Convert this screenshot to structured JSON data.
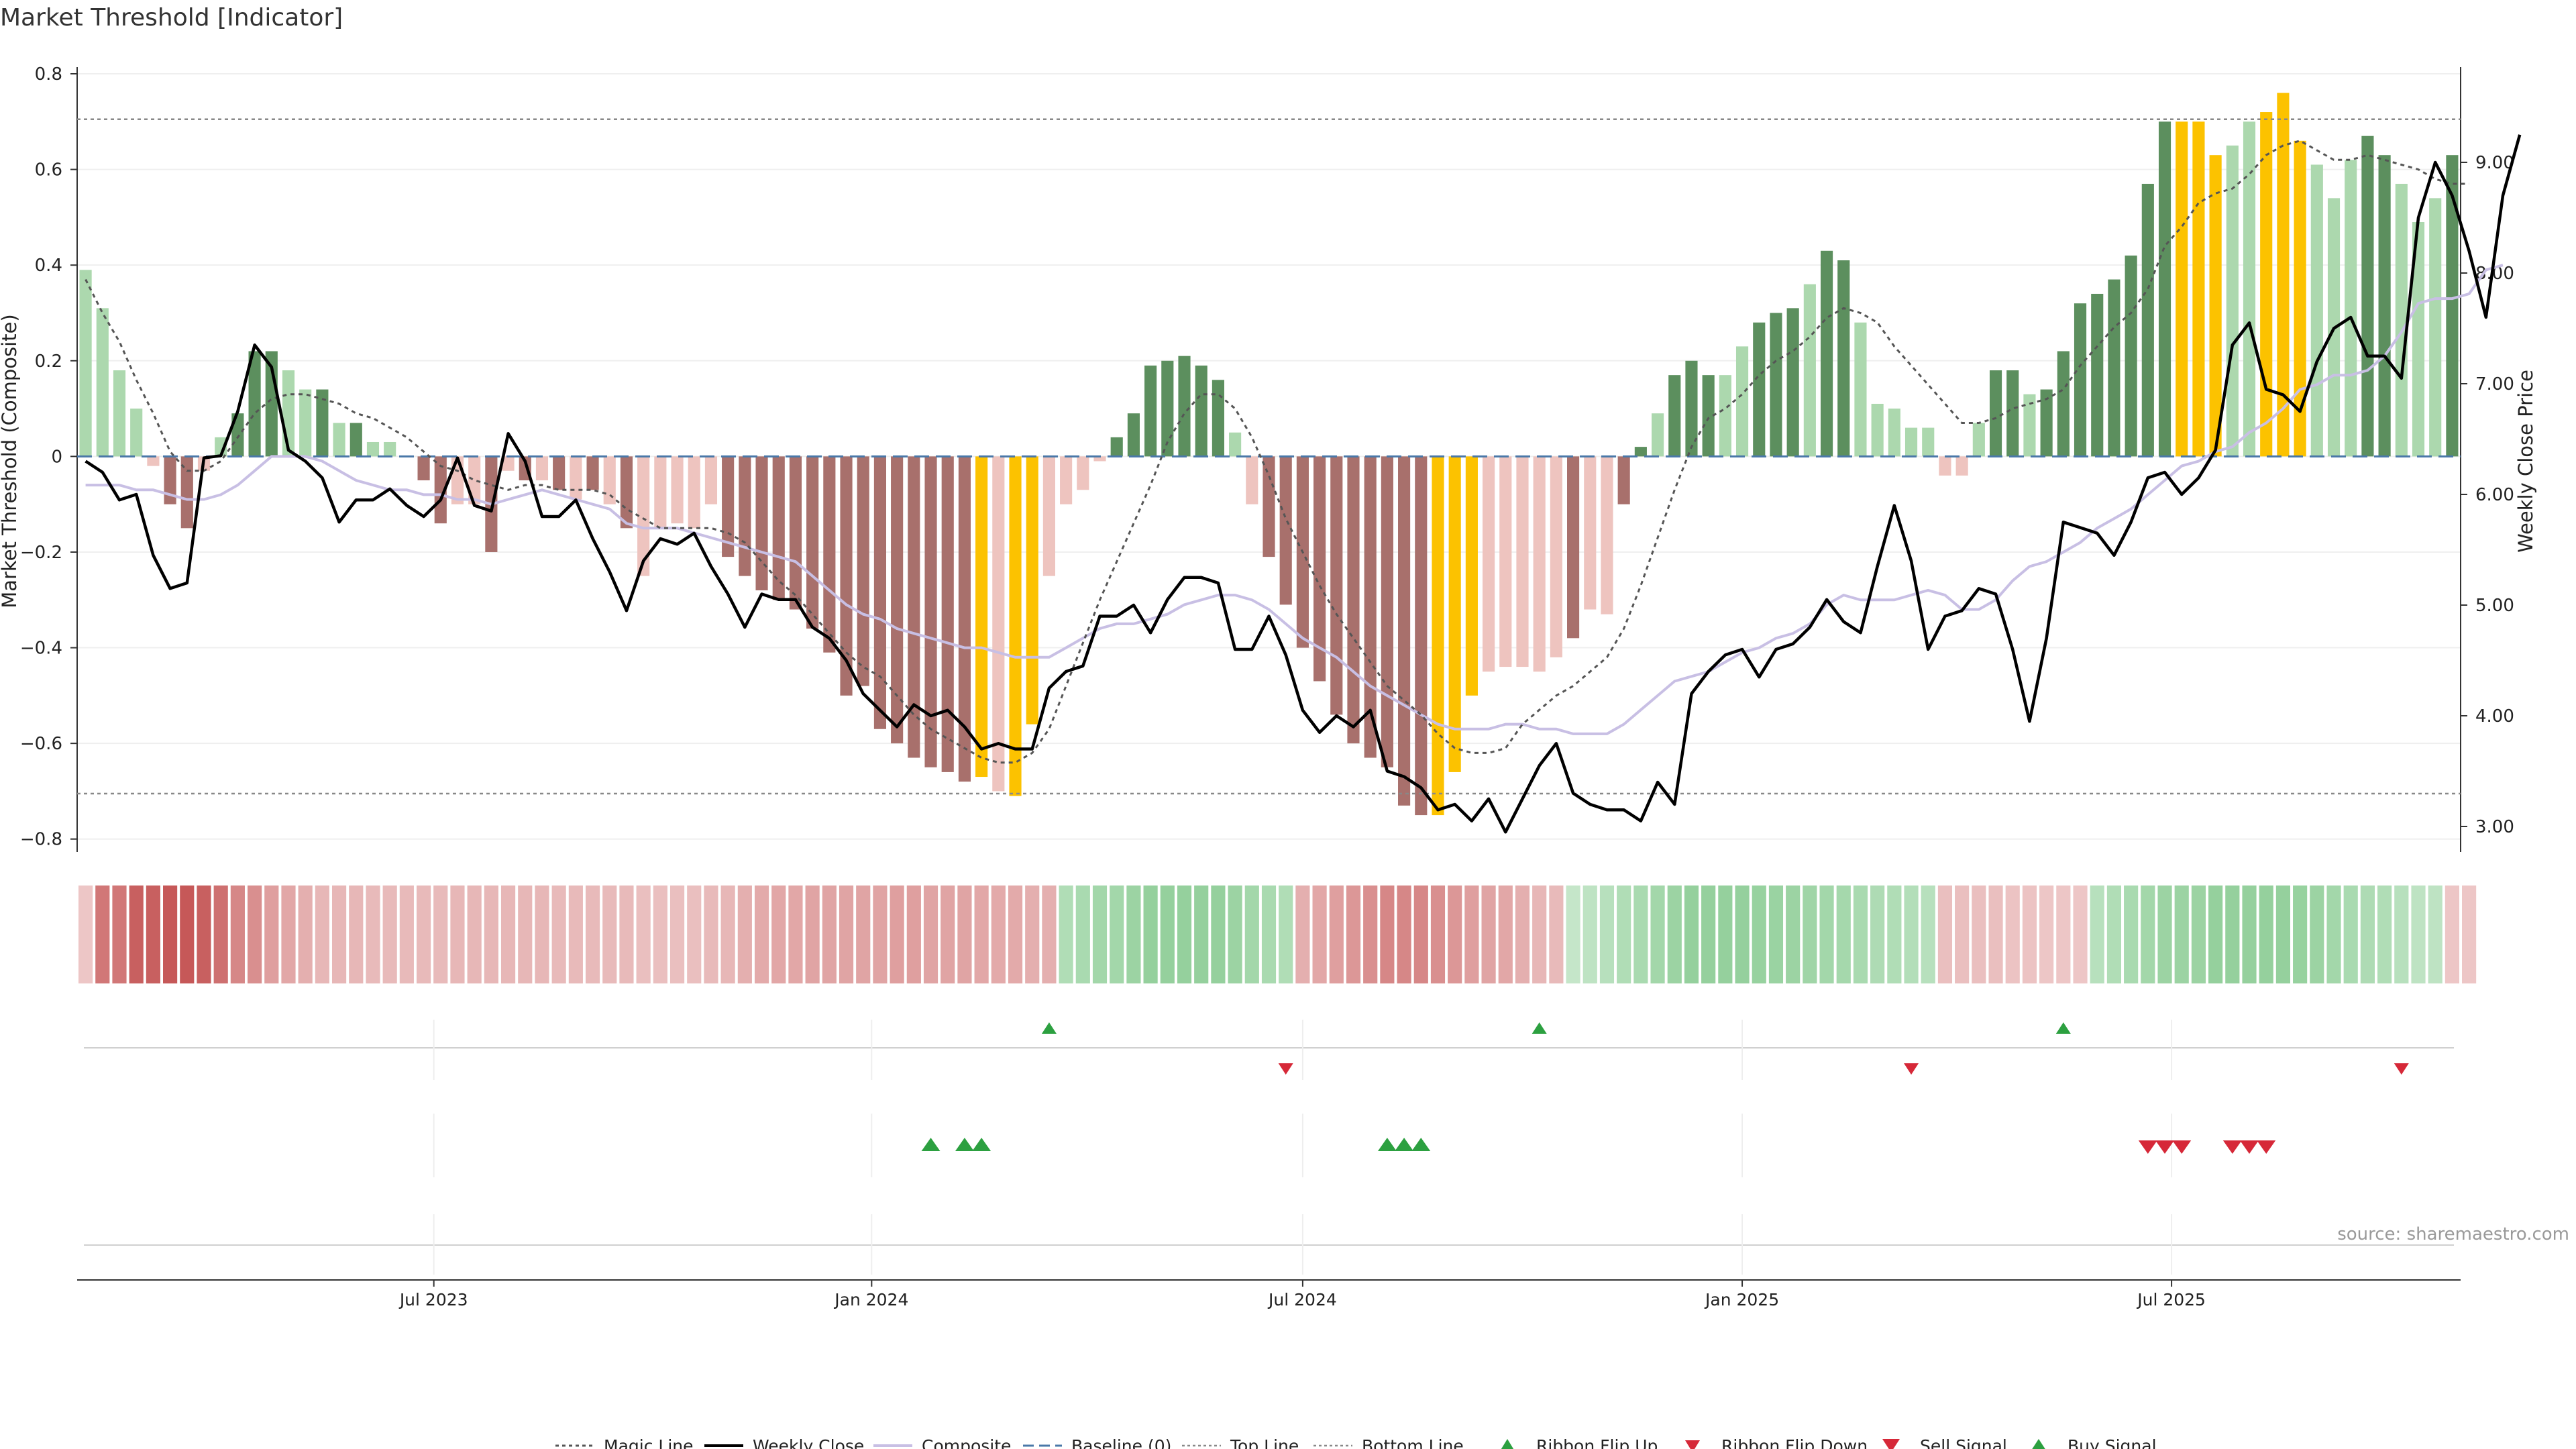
{
  "title": "Market Threshold [Indicator]",
  "source_note": "source: sharemaestro.com",
  "colors": {
    "bull_dark": "#5c8f5e",
    "bull_light": "#acd8ae",
    "bear_dark": "#a8706c",
    "bear_light": "#eec4bf",
    "extreme": "#fcc200",
    "close": "#000000",
    "composite": "#c8bfe4",
    "magic": "#555555",
    "baseline": "#4a78a8",
    "threshold": "#888888",
    "buy": "#2ca040",
    "sell": "#d62838"
  },
  "chart_data": {
    "type": "bar",
    "x_ticks": [
      "Jul 2023",
      "Jan 2024",
      "Jul 2024",
      "Jan 2025",
      "Jul 2025"
    ],
    "left_axis": {
      "label": "Market Threshold (Composite)",
      "ylim": [
        -0.82,
        0.8
      ],
      "ticks": [
        "0.8",
        "0.6",
        "0.4",
        "0.2",
        "0",
        "−0.2",
        "−0.4",
        "−0.6",
        "−0.8"
      ]
    },
    "right_axis": {
      "label": "Weekly Close Price",
      "ylim": [
        2.8,
        9.8
      ],
      "ticks": [
        "9.00",
        "8.00",
        "7.00",
        "6.00",
        "5.00",
        "4.00",
        "3.00"
      ]
    },
    "top_line": 0.705,
    "bottom_line": -0.705,
    "composite_bars": [
      0.39,
      0.31,
      0.18,
      0.1,
      -0.02,
      -0.1,
      -0.15,
      -0.03,
      0.04,
      0.09,
      0.22,
      0.22,
      0.18,
      0.14,
      0.14,
      0.07,
      0.07,
      0.03,
      0.03,
      0.0,
      -0.05,
      -0.14,
      -0.1,
      -0.1,
      -0.2,
      -0.03,
      -0.05,
      -0.05,
      -0.07,
      -0.09,
      -0.07,
      -0.1,
      -0.15,
      -0.25,
      -0.15,
      -0.14,
      -0.15,
      -0.1,
      -0.21,
      -0.25,
      -0.28,
      -0.3,
      -0.32,
      -0.36,
      -0.41,
      -0.5,
      -0.48,
      -0.57,
      -0.6,
      -0.63,
      -0.65,
      -0.66,
      -0.68,
      -0.67,
      -0.7,
      -0.71,
      -0.56,
      -0.25,
      -0.1,
      -0.07,
      -0.01,
      0.04,
      0.09,
      0.19,
      0.2,
      0.21,
      0.19,
      0.16,
      0.05,
      -0.1,
      -0.21,
      -0.31,
      -0.4,
      -0.47,
      -0.54,
      -0.6,
      -0.63,
      -0.65,
      -0.73,
      -0.75,
      -0.75,
      -0.66,
      -0.5,
      -0.45,
      -0.44,
      -0.44,
      -0.45,
      -0.42,
      -0.38,
      -0.32,
      -0.33,
      -0.1,
      0.02,
      0.09,
      0.17,
      0.2,
      0.17,
      0.17,
      0.23,
      0.28,
      0.3,
      0.31,
      0.36,
      0.43,
      0.41,
      0.28,
      0.11,
      0.1,
      0.06,
      0.06,
      -0.04,
      -0.04,
      0.07,
      0.18,
      0.18,
      0.13,
      0.14,
      0.22,
      0.32,
      0.34,
      0.37,
      0.42,
      0.57,
      0.7,
      0.7,
      0.7,
      0.63,
      0.65,
      0.7,
      0.72,
      0.76,
      0.66,
      0.61,
      0.54,
      0.62,
      0.67,
      0.63,
      0.57,
      0.49,
      0.54,
      0.63
    ],
    "bar_kind": [
      "L",
      "L",
      "L",
      "L",
      "R",
      "D",
      "D",
      "R",
      "L",
      "D",
      "D",
      "D",
      "L",
      "L",
      "D",
      "L",
      "D",
      "L",
      "L",
      "R",
      "D",
      "D",
      "R",
      "R",
      "D",
      "R",
      "D",
      "R",
      "D",
      "R",
      "D",
      "R",
      "D",
      "R",
      "R",
      "R",
      "R",
      "R",
      "D",
      "D",
      "D",
      "D",
      "D",
      "D",
      "D",
      "D",
      "D",
      "D",
      "D",
      "D",
      "D",
      "D",
      "D",
      "Y",
      "R",
      "Y",
      "Y",
      "R",
      "R",
      "R",
      "R",
      "D",
      "D",
      "D",
      "D",
      "D",
      "D",
      "D",
      "L",
      "R",
      "D",
      "D",
      "D",
      "D",
      "D",
      "D",
      "D",
      "D",
      "D",
      "D",
      "Y",
      "Y",
      "Y",
      "R",
      "R",
      "R",
      "R",
      "R",
      "D",
      "R",
      "R",
      "D",
      "D",
      "L",
      "D",
      "D",
      "D",
      "L",
      "L",
      "D",
      "D",
      "D",
      "L",
      "D",
      "D",
      "L",
      "L",
      "L",
      "L",
      "L",
      "R",
      "R",
      "L",
      "D",
      "D",
      "L",
      "D",
      "D",
      "D",
      "D",
      "D",
      "D",
      "D",
      "D",
      "Y",
      "Y",
      "Y",
      "L",
      "L",
      "Y",
      "Y",
      "Y",
      "L",
      "L",
      "L",
      "D",
      "D",
      "L",
      "L",
      "L",
      "D",
      "D"
    ],
    "weekly_close": [
      6.3,
      6.2,
      5.95,
      6.0,
      5.45,
      5.15,
      5.2,
      6.33,
      6.35,
      6.75,
      7.35,
      7.15,
      6.4,
      6.3,
      6.15,
      5.75,
      5.95,
      5.95,
      6.05,
      5.9,
      5.8,
      5.95,
      6.33,
      5.9,
      5.85,
      6.55,
      6.3,
      5.8,
      5.8,
      5.95,
      5.6,
      5.3,
      4.95,
      5.4,
      5.6,
      5.55,
      5.65,
      5.35,
      5.1,
      4.8,
      5.1,
      5.05,
      5.05,
      4.8,
      4.7,
      4.5,
      4.2,
      4.05,
      3.9,
      4.1,
      4.0,
      4.05,
      3.9,
      3.7,
      3.75,
      3.7,
      3.7,
      4.25,
      4.4,
      4.45,
      4.9,
      4.9,
      5.0,
      4.75,
      5.05,
      5.25,
      5.25,
      5.2,
      4.6,
      4.6,
      4.9,
      4.55,
      4.05,
      3.85,
      4.0,
      3.9,
      4.05,
      3.5,
      3.45,
      3.35,
      3.15,
      3.2,
      3.05,
      3.25,
      2.95,
      3.25,
      3.55,
      3.75,
      3.3,
      3.2,
      3.15,
      3.15,
      3.05,
      3.4,
      3.2,
      4.2,
      4.4,
      4.55,
      4.6,
      4.35,
      4.6,
      4.65,
      4.8,
      5.05,
      4.85,
      4.75,
      5.35,
      5.9,
      5.4,
      4.6,
      4.9,
      4.95,
      5.15,
      5.1,
      4.6,
      3.95,
      4.7,
      5.75,
      5.7,
      5.65,
      5.45,
      5.75,
      6.15,
      6.2,
      6.0,
      6.15,
      6.4,
      7.35,
      7.55,
      6.95,
      6.9,
      6.75,
      7.2,
      7.5,
      7.6,
      7.25,
      7.25,
      7.05,
      8.5,
      9.0,
      8.7,
      8.2,
      7.6,
      8.7,
      9.25
    ],
    "composite_line": [
      -0.06,
      -0.06,
      -0.06,
      -0.07,
      -0.07,
      -0.08,
      -0.09,
      -0.09,
      -0.08,
      -0.06,
      -0.03,
      0.0,
      0.0,
      0.0,
      -0.01,
      -0.03,
      -0.05,
      -0.06,
      -0.07,
      -0.07,
      -0.08,
      -0.08,
      -0.09,
      -0.09,
      -0.1,
      -0.09,
      -0.08,
      -0.07,
      -0.08,
      -0.09,
      -0.1,
      -0.11,
      -0.14,
      -0.15,
      -0.15,
      -0.15,
      -0.16,
      -0.17,
      -0.18,
      -0.19,
      -0.2,
      -0.21,
      -0.22,
      -0.25,
      -0.28,
      -0.31,
      -0.33,
      -0.34,
      -0.36,
      -0.37,
      -0.38,
      -0.39,
      -0.4,
      -0.4,
      -0.41,
      -0.42,
      -0.42,
      -0.42,
      -0.4,
      -0.38,
      -0.36,
      -0.35,
      -0.35,
      -0.34,
      -0.33,
      -0.31,
      -0.3,
      -0.29,
      -0.29,
      -0.3,
      -0.32,
      -0.35,
      -0.38,
      -0.4,
      -0.42,
      -0.45,
      -0.48,
      -0.5,
      -0.52,
      -0.54,
      -0.56,
      -0.57,
      -0.57,
      -0.57,
      -0.56,
      -0.56,
      -0.57,
      -0.57,
      -0.58,
      -0.58,
      -0.58,
      -0.56,
      -0.53,
      -0.5,
      -0.47,
      -0.46,
      -0.45,
      -0.43,
      -0.41,
      -0.4,
      -0.38,
      -0.37,
      -0.35,
      -0.31,
      -0.29,
      -0.3,
      -0.3,
      -0.3,
      -0.29,
      -0.28,
      -0.29,
      -0.32,
      -0.32,
      -0.3,
      -0.26,
      -0.23,
      -0.22,
      -0.2,
      -0.18,
      -0.15,
      -0.13,
      -0.11,
      -0.08,
      -0.05,
      -0.02,
      -0.01,
      0.01,
      0.02,
      0.05,
      0.07,
      0.1,
      0.14,
      0.15,
      0.17,
      0.17,
      0.18,
      0.21,
      0.26,
      0.32,
      0.33,
      0.33,
      0.34,
      0.39,
      0.4
    ],
    "magic_line": [
      0.37,
      0.3,
      0.24,
      0.16,
      0.09,
      0.01,
      -0.03,
      -0.03,
      -0.01,
      0.04,
      0.09,
      0.12,
      0.13,
      0.13,
      0.12,
      0.11,
      0.09,
      0.08,
      0.06,
      0.04,
      0.01,
      -0.02,
      -0.03,
      -0.05,
      -0.06,
      -0.07,
      -0.06,
      -0.06,
      -0.07,
      -0.07,
      -0.07,
      -0.08,
      -0.11,
      -0.13,
      -0.15,
      -0.15,
      -0.15,
      -0.15,
      -0.16,
      -0.18,
      -0.22,
      -0.26,
      -0.29,
      -0.33,
      -0.37,
      -0.41,
      -0.44,
      -0.46,
      -0.5,
      -0.54,
      -0.57,
      -0.59,
      -0.61,
      -0.63,
      -0.64,
      -0.64,
      -0.62,
      -0.57,
      -0.48,
      -0.39,
      -0.3,
      -0.22,
      -0.14,
      -0.06,
      0.03,
      0.09,
      0.13,
      0.13,
      0.1,
      0.04,
      -0.04,
      -0.13,
      -0.2,
      -0.27,
      -0.33,
      -0.38,
      -0.43,
      -0.48,
      -0.51,
      -0.54,
      -0.58,
      -0.61,
      -0.62,
      -0.62,
      -0.61,
      -0.56,
      -0.53,
      -0.5,
      -0.48,
      -0.45,
      -0.42,
      -0.36,
      -0.27,
      -0.17,
      -0.07,
      0.02,
      0.08,
      0.1,
      0.13,
      0.17,
      0.2,
      0.22,
      0.25,
      0.29,
      0.31,
      0.3,
      0.28,
      0.23,
      0.19,
      0.15,
      0.11,
      0.07,
      0.07,
      0.08,
      0.1,
      0.11,
      0.12,
      0.14,
      0.19,
      0.23,
      0.27,
      0.3,
      0.35,
      0.44,
      0.48,
      0.53,
      0.55,
      0.56,
      0.59,
      0.63,
      0.65,
      0.66,
      0.64,
      0.62,
      0.62,
      0.63,
      0.62,
      0.61,
      0.6,
      0.58,
      0.57,
      0.57
    ],
    "ribbon_values": [
      -0.2,
      -0.7,
      -0.7,
      -0.85,
      -0.85,
      -0.9,
      -0.9,
      -0.85,
      -0.75,
      -0.6,
      -0.55,
      -0.45,
      -0.4,
      -0.35,
      -0.3,
      -0.3,
      -0.3,
      -0.28,
      -0.28,
      -0.28,
      -0.28,
      -0.28,
      -0.3,
      -0.3,
      -0.3,
      -0.3,
      -0.3,
      -0.3,
      -0.28,
      -0.28,
      -0.28,
      -0.28,
      -0.28,
      -0.25,
      -0.25,
      -0.25,
      -0.25,
      -0.28,
      -0.3,
      -0.35,
      -0.38,
      -0.4,
      -0.4,
      -0.42,
      -0.42,
      -0.42,
      -0.42,
      -0.42,
      -0.45,
      -0.45,
      -0.42,
      -0.42,
      -0.42,
      -0.4,
      -0.38,
      -0.38,
      -0.35,
      -0.35,
      0.4,
      0.45,
      0.5,
      0.5,
      0.55,
      0.6,
      0.6,
      0.6,
      0.6,
      0.6,
      0.55,
      0.5,
      0.45,
      0.4,
      -0.35,
      -0.4,
      -0.45,
      -0.5,
      -0.55,
      -0.6,
      -0.6,
      -0.6,
      -0.55,
      -0.5,
      -0.45,
      -0.42,
      -0.4,
      -0.35,
      -0.3,
      -0.28,
      0.25,
      0.3,
      0.35,
      0.4,
      0.45,
      0.5,
      0.55,
      0.6,
      0.6,
      0.6,
      0.6,
      0.58,
      0.56,
      0.55,
      0.52,
      0.5,
      0.48,
      0.45,
      0.42,
      0.4,
      0.38,
      0.35,
      -0.25,
      -0.25,
      -0.25,
      -0.25,
      -0.22,
      -0.22,
      -0.2,
      -0.2,
      -0.2,
      0.35,
      0.4,
      0.45,
      0.5,
      0.55,
      0.55,
      0.55,
      0.6,
      0.6,
      0.6,
      0.6,
      0.6,
      0.58,
      0.55,
      0.5,
      0.45,
      0.42,
      0.4,
      0.35,
      0.3,
      0.3,
      -0.2,
      -0.2
    ],
    "ribbon_flip_up": [
      57,
      86,
      117
    ],
    "ribbon_flip_down": [
      71,
      108,
      137
    ],
    "buy_signal": [
      50,
      52,
      53,
      77,
      78,
      79
    ],
    "sell_signal": [
      122,
      123,
      124,
      127,
      128,
      129
    ],
    "legend": [
      {
        "label": "Magic Line",
        "kind": "magic"
      },
      {
        "label": "Weekly Close",
        "kind": "close"
      },
      {
        "label": "Composite",
        "kind": "composite"
      },
      {
        "label": "Baseline (0)",
        "kind": "baseline"
      },
      {
        "label": "Top Line",
        "kind": "top"
      },
      {
        "label": "Bottom Line",
        "kind": "bottom"
      },
      {
        "label": "Ribbon Flip Up",
        "kind": "flipup"
      },
      {
        "label": "Ribbon Flip Down",
        "kind": "flipdown"
      },
      {
        "label": "Sell Signal",
        "kind": "sell"
      },
      {
        "label": "Buy Signal",
        "kind": "buy"
      }
    ]
  }
}
